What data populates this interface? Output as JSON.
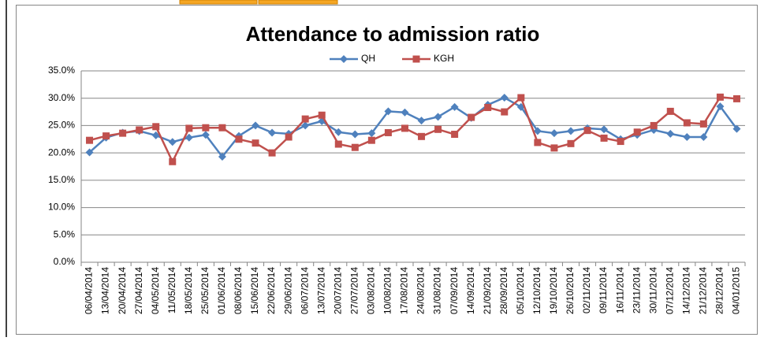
{
  "chart_data": {
    "type": "line",
    "title": "Attendance to admission ratio",
    "categories": [
      "06/04/2014",
      "13/04/2014",
      "20/04/2014",
      "27/04/2014",
      "04/05/2014",
      "11/05/2014",
      "18/05/2014",
      "25/05/2014",
      "01/06/2014",
      "08/06/2014",
      "15/06/2014",
      "22/06/2014",
      "29/06/2014",
      "06/07/2014",
      "13/07/2014",
      "20/07/2014",
      "27/07/2014",
      "03/08/2014",
      "10/08/2014",
      "17/08/2014",
      "24/08/2014",
      "31/08/2014",
      "07/09/2014",
      "14/09/2014",
      "21/09/2014",
      "28/09/2014",
      "05/10/2014",
      "12/10/2014",
      "19/10/2014",
      "26/10/2014",
      "02/11/2014",
      "09/11/2014",
      "16/11/2014",
      "23/11/2014",
      "30/11/2014",
      "07/12/2014",
      "14/12/2014",
      "21/12/2014",
      "28/12/2014",
      "04/01/2015"
    ],
    "series": [
      {
        "name": "QH",
        "color": "#4f81bd",
        "marker": "diamond",
        "values": [
          20.1,
          22.8,
          23.7,
          24.0,
          23.2,
          22.0,
          22.8,
          23.3,
          19.3,
          23.1,
          25.0,
          23.7,
          23.5,
          25.0,
          25.8,
          23.8,
          23.4,
          23.6,
          27.6,
          27.4,
          25.9,
          26.6,
          28.4,
          26.4,
          28.8,
          30.1,
          28.4,
          24.0,
          23.6,
          24.0,
          24.5,
          24.3,
          22.5,
          23.3,
          24.2,
          23.5,
          22.9,
          22.9,
          28.5,
          24.4
        ]
      },
      {
        "name": "KGH",
        "color": "#c0504d",
        "marker": "square",
        "values": [
          22.3,
          23.1,
          23.6,
          24.2,
          24.8,
          18.4,
          24.5,
          24.6,
          24.6,
          22.5,
          21.8,
          20.0,
          22.9,
          26.2,
          26.9,
          21.6,
          21.0,
          22.3,
          23.7,
          24.5,
          23.0,
          24.3,
          23.4,
          26.5,
          28.3,
          27.5,
          30.1,
          21.9,
          20.9,
          21.7,
          24.1,
          22.7,
          22.1,
          23.8,
          25.0,
          27.6,
          25.5,
          25.3,
          30.2,
          29.9
        ]
      }
    ],
    "ylim": [
      0,
      35
    ],
    "yticks": [
      {
        "value": 0,
        "label": "0.0%"
      },
      {
        "value": 5,
        "label": "5.0%"
      },
      {
        "value": 10,
        "label": "10.0%"
      },
      {
        "value": 15,
        "label": "15.0%"
      },
      {
        "value": 20,
        "label": "20.0%"
      },
      {
        "value": 25,
        "label": "25.0%"
      },
      {
        "value": 30,
        "label": "30.0%"
      },
      {
        "value": 35,
        "label": "35.0%"
      }
    ],
    "grid": true,
    "legend": "top"
  }
}
